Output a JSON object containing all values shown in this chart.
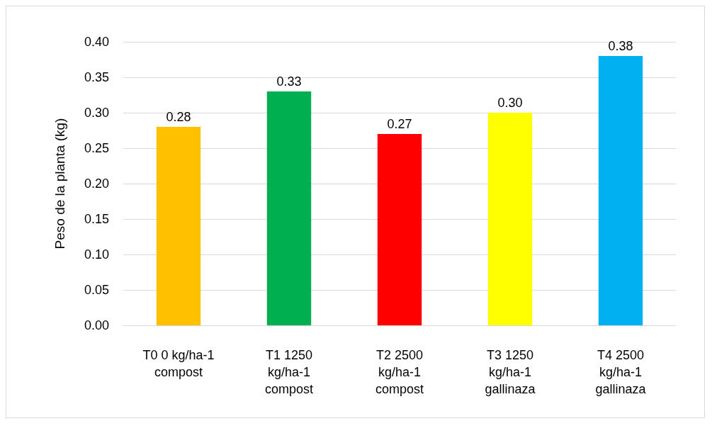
{
  "chart_data": {
    "type": "bar",
    "ylabel": "Peso de la planta (kg)",
    "categories": [
      "T0 0 kg/ha-1 compost",
      "T1 1250 kg/ha-1 compost",
      "T2 2500 kg/ha-1 compost",
      "T3 1250 kg/ha-1 gallinaza",
      "T4 2500 kg/ha-1 gallinaza"
    ],
    "values": [
      0.28,
      0.33,
      0.27,
      0.3,
      0.38
    ],
    "colors": [
      "#ffc000",
      "#00b050",
      "#ff0000",
      "#ffff00",
      "#00b0f0"
    ],
    "value_labels": [
      "0.28",
      "0.33",
      "0.27",
      "0.30",
      "0.38"
    ],
    "ylim": [
      0,
      0.4
    ],
    "yticks": [
      {
        "value": 0,
        "label": "0.00"
      },
      {
        "value": 0.05,
        "label": "0.05"
      },
      {
        "value": 0.1,
        "label": "0.10"
      },
      {
        "value": 0.15,
        "label": "0.15"
      },
      {
        "value": 0.2,
        "label": "0.20"
      },
      {
        "value": 0.25,
        "label": "0.25"
      },
      {
        "value": 0.3,
        "label": "0.30"
      },
      {
        "value": 0.35,
        "label": "0.35"
      },
      {
        "value": 0.4,
        "label": "0.40"
      }
    ],
    "grid": "y"
  }
}
